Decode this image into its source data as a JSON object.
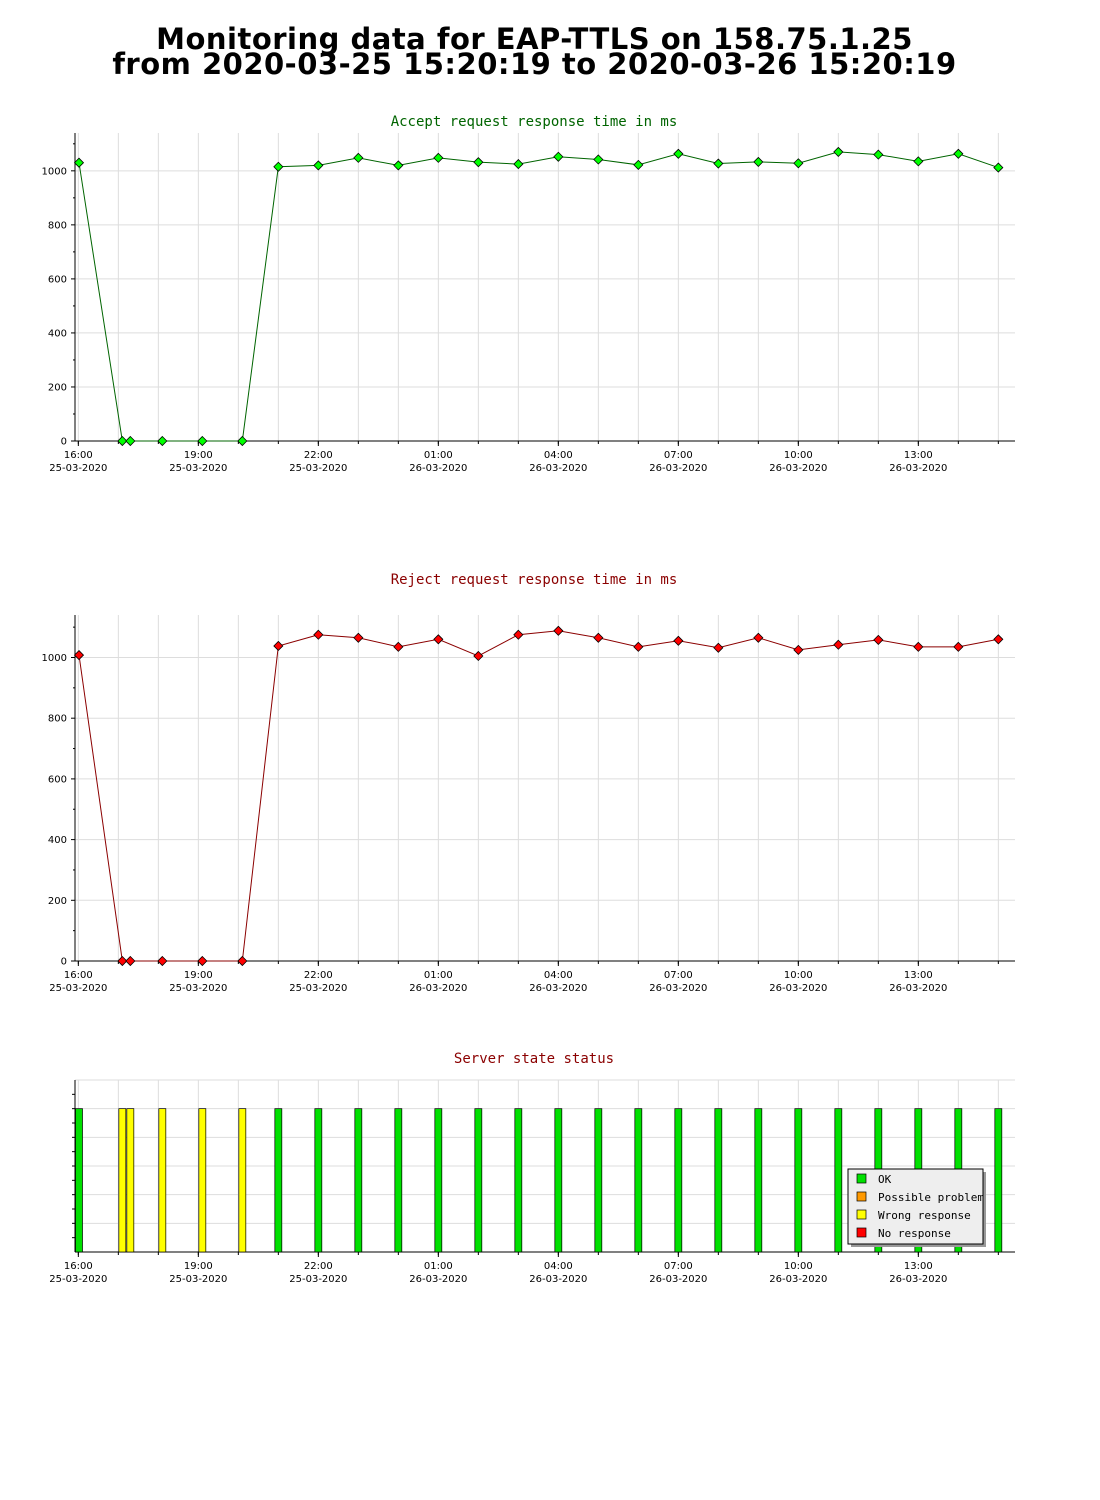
{
  "page": {
    "title_line1": "Monitoring data for EAP-TTLS on 158.75.1.25",
    "title_line2": "from 2020-03-25 15:20:19 to 2020-03-26 15:20:19"
  },
  "chart_data": [
    {
      "type": "line",
      "title": "Accept request response time in ms",
      "title_color": "#006400",
      "line_color": "#006400",
      "marker_color": "#00ff00",
      "grid": true,
      "ylim": [
        0,
        1140
      ],
      "yticks": [
        0,
        200,
        400,
        600,
        800,
        1000
      ],
      "x_start": "2020-03-25 15:55",
      "x_end": "2020-03-26 15:25",
      "x_tick_labels": [
        [
          "16:00",
          "25-03-2020"
        ],
        [
          "19:00",
          "25-03-2020"
        ],
        [
          "22:00",
          "25-03-2020"
        ],
        [
          "01:00",
          "26-03-2020"
        ],
        [
          "04:00",
          "26-03-2020"
        ],
        [
          "07:00",
          "26-03-2020"
        ],
        [
          "10:00",
          "26-03-2020"
        ],
        [
          "13:00",
          "26-03-2020"
        ]
      ],
      "points": [
        [
          "2020-03-25 16:01",
          1030
        ],
        [
          "2020-03-25 17:06",
          0
        ],
        [
          "2020-03-25 17:18",
          0
        ],
        [
          "2020-03-25 18:06",
          0
        ],
        [
          "2020-03-25 19:06",
          0
        ],
        [
          "2020-03-25 20:06",
          0
        ],
        [
          "2020-03-25 21:00",
          1015
        ],
        [
          "2020-03-25 22:00",
          1020
        ],
        [
          "2020-03-25 23:00",
          1048
        ],
        [
          "2020-03-26 00:00",
          1020
        ],
        [
          "2020-03-26 01:00",
          1048
        ],
        [
          "2020-03-26 02:00",
          1032
        ],
        [
          "2020-03-26 03:00",
          1025
        ],
        [
          "2020-03-26 04:00",
          1052
        ],
        [
          "2020-03-26 05:00",
          1042
        ],
        [
          "2020-03-26 06:00",
          1022
        ],
        [
          "2020-03-26 07:00",
          1063
        ],
        [
          "2020-03-26 08:00",
          1027
        ],
        [
          "2020-03-26 09:00",
          1033
        ],
        [
          "2020-03-26 10:00",
          1028
        ],
        [
          "2020-03-26 11:00",
          1070
        ],
        [
          "2020-03-26 12:00",
          1060
        ],
        [
          "2020-03-26 13:00",
          1035
        ],
        [
          "2020-03-26 14:00",
          1063
        ],
        [
          "2020-03-26 15:00",
          1012
        ]
      ]
    },
    {
      "type": "line",
      "title": "Reject request response time in ms",
      "title_color": "#8b0000",
      "line_color": "#8b0000",
      "marker_color": "#ff0000",
      "grid": true,
      "ylim": [
        0,
        1140
      ],
      "yticks": [
        0,
        200,
        400,
        600,
        800,
        1000
      ],
      "x_start": "2020-03-25 15:55",
      "x_end": "2020-03-26 15:25",
      "x_tick_labels": [
        [
          "16:00",
          "25-03-2020"
        ],
        [
          "19:00",
          "25-03-2020"
        ],
        [
          "22:00",
          "25-03-2020"
        ],
        [
          "01:00",
          "26-03-2020"
        ],
        [
          "04:00",
          "26-03-2020"
        ],
        [
          "07:00",
          "26-03-2020"
        ],
        [
          "10:00",
          "26-03-2020"
        ],
        [
          "13:00",
          "26-03-2020"
        ]
      ],
      "points": [
        [
          "2020-03-25 16:01",
          1008
        ],
        [
          "2020-03-25 17:06",
          0
        ],
        [
          "2020-03-25 17:18",
          0
        ],
        [
          "2020-03-25 18:06",
          0
        ],
        [
          "2020-03-25 19:06",
          0
        ],
        [
          "2020-03-25 20:06",
          0
        ],
        [
          "2020-03-25 21:00",
          1038
        ],
        [
          "2020-03-25 22:00",
          1075
        ],
        [
          "2020-03-25 23:00",
          1065
        ],
        [
          "2020-03-26 00:00",
          1035
        ],
        [
          "2020-03-26 01:00",
          1060
        ],
        [
          "2020-03-26 02:00",
          1005
        ],
        [
          "2020-03-26 03:00",
          1075
        ],
        [
          "2020-03-26 04:00",
          1088
        ],
        [
          "2020-03-26 05:00",
          1065
        ],
        [
          "2020-03-26 06:00",
          1035
        ],
        [
          "2020-03-26 07:00",
          1055
        ],
        [
          "2020-03-26 08:00",
          1032
        ],
        [
          "2020-03-26 09:00",
          1065
        ],
        [
          "2020-03-26 10:00",
          1025
        ],
        [
          "2020-03-26 11:00",
          1042
        ],
        [
          "2020-03-26 12:00",
          1058
        ],
        [
          "2020-03-26 13:00",
          1035
        ],
        [
          "2020-03-26 14:00",
          1035
        ],
        [
          "2020-03-26 15:00",
          1060
        ]
      ]
    },
    {
      "type": "bar",
      "title": "Server state status",
      "title_color": "#8b0000",
      "grid": true,
      "bar_value": 1,
      "ylim": [
        0,
        1.2
      ],
      "x_start": "2020-03-25 15:55",
      "x_end": "2020-03-26 15:25",
      "x_tick_labels": [
        [
          "16:00",
          "25-03-2020"
        ],
        [
          "19:00",
          "25-03-2020"
        ],
        [
          "22:00",
          "25-03-2020"
        ],
        [
          "01:00",
          "26-03-2020"
        ],
        [
          "04:00",
          "26-03-2020"
        ],
        [
          "07:00",
          "26-03-2020"
        ],
        [
          "10:00",
          "26-03-2020"
        ],
        [
          "13:00",
          "26-03-2020"
        ]
      ],
      "status_colors": {
        "OK": "#00e000",
        "Possible problem": "#ff9900",
        "Wrong response": "#ffff00",
        "No response": "#ff0000"
      },
      "legend": [
        "OK",
        "Possible problem",
        "Wrong response",
        "No response"
      ],
      "legend_position": "bottom-right",
      "bars": [
        [
          "2020-03-25 16:01",
          "OK"
        ],
        [
          "2020-03-25 17:06",
          "Wrong response"
        ],
        [
          "2020-03-25 17:18",
          "Wrong response"
        ],
        [
          "2020-03-25 18:06",
          "Wrong response"
        ],
        [
          "2020-03-25 19:06",
          "Wrong response"
        ],
        [
          "2020-03-25 20:06",
          "Wrong response"
        ],
        [
          "2020-03-25 21:00",
          "OK"
        ],
        [
          "2020-03-25 22:00",
          "OK"
        ],
        [
          "2020-03-25 23:00",
          "OK"
        ],
        [
          "2020-03-26 00:00",
          "OK"
        ],
        [
          "2020-03-26 01:00",
          "OK"
        ],
        [
          "2020-03-26 02:00",
          "OK"
        ],
        [
          "2020-03-26 03:00",
          "OK"
        ],
        [
          "2020-03-26 04:00",
          "OK"
        ],
        [
          "2020-03-26 05:00",
          "OK"
        ],
        [
          "2020-03-26 06:00",
          "OK"
        ],
        [
          "2020-03-26 07:00",
          "OK"
        ],
        [
          "2020-03-26 08:00",
          "OK"
        ],
        [
          "2020-03-26 09:00",
          "OK"
        ],
        [
          "2020-03-26 10:00",
          "OK"
        ],
        [
          "2020-03-26 11:00",
          "OK"
        ],
        [
          "2020-03-26 12:00",
          "OK"
        ],
        [
          "2020-03-26 13:00",
          "OK"
        ],
        [
          "2020-03-26 14:00",
          "OK"
        ],
        [
          "2020-03-26 15:00",
          "OK"
        ]
      ]
    }
  ]
}
